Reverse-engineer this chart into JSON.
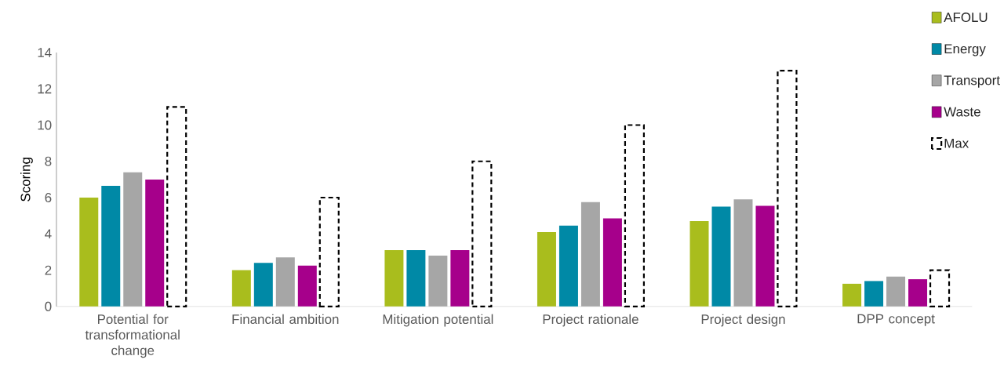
{
  "chart_data": {
    "type": "bar",
    "ylabel": "Scoring",
    "categories": [
      "Potential for transformational change",
      "Financial ambition",
      "Mitigation potential",
      "Project rationale",
      "Project design",
      "DPP concept"
    ],
    "series": [
      {
        "name": "AFOLU",
        "color": "#a9bd1d",
        "values": [
          6.0,
          2.0,
          3.1,
          4.1,
          4.7,
          1.25
        ]
      },
      {
        "name": "Energy",
        "color": "#0089a6",
        "values": [
          6.65,
          2.4,
          3.1,
          4.45,
          5.5,
          1.4
        ]
      },
      {
        "name": "Transport",
        "color": "#a6a6a6",
        "values": [
          7.4,
          2.7,
          2.8,
          5.75,
          5.9,
          1.65
        ]
      },
      {
        "name": "Waste",
        "color": "#a6008b",
        "values": [
          7.0,
          2.25,
          3.1,
          4.85,
          5.55,
          1.5
        ]
      },
      {
        "name": "Max",
        "color": "#000000",
        "line_style": "dashed",
        "values": [
          11,
          6,
          8,
          10,
          13,
          2
        ]
      }
    ],
    "ylim": [
      0,
      14
    ],
    "yticks": [
      0,
      2,
      4,
      6,
      8,
      10,
      12,
      14
    ],
    "grid": false,
    "legend": "top right"
  }
}
